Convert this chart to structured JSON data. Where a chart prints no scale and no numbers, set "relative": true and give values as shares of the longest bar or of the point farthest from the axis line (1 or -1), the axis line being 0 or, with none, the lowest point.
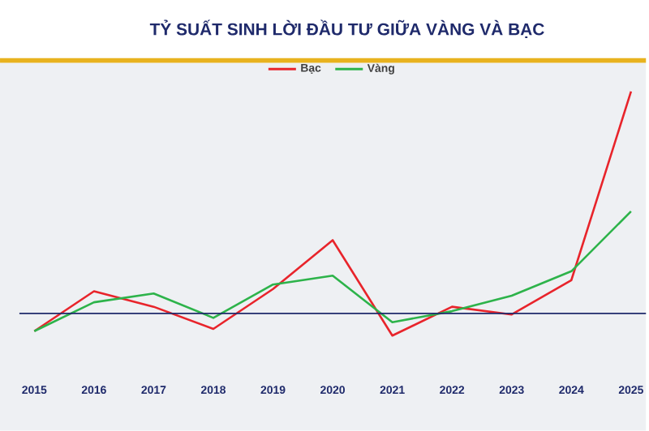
{
  "chart_data": {
    "type": "line",
    "title": "TỶ SUẤT SINH LỜI ĐẦU TƯ GIỮA VÀNG VÀ BẠC",
    "relative": true,
    "legend": "top",
    "ref_lines": [
      {
        "axis": "y",
        "value": 0,
        "color": "#1f2a6b"
      }
    ],
    "line_style": "solid",
    "marker": "none",
    "categories": [
      "2015",
      "2016",
      "2017",
      "2018",
      "2019",
      "2020",
      "2021",
      "2022",
      "2023",
      "2024",
      "2025"
    ],
    "series": [
      {
        "name": "Bạc",
        "color": "#e8242b",
        "values": [
          -0.08,
          0.1,
          0.03,
          -0.07,
          0.11,
          0.33,
          -0.1,
          0.03,
          -0.005,
          0.15,
          1.0
        ]
      },
      {
        "name": "Vàng",
        "color": "#2db34a",
        "values": [
          -0.08,
          0.05,
          0.09,
          -0.02,
          0.13,
          0.17,
          -0.04,
          0.01,
          0.08,
          0.19,
          0.46
        ]
      }
    ]
  }
}
